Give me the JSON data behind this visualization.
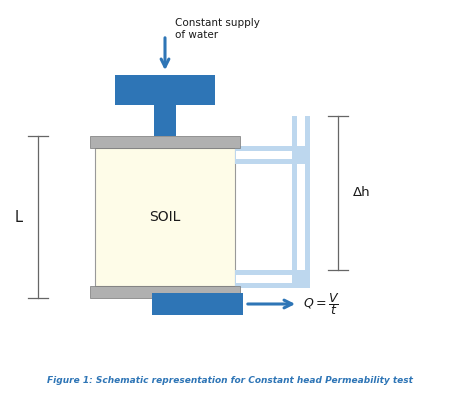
{
  "fig_width": 4.59,
  "fig_height": 3.96,
  "dpi": 100,
  "bg_color": "#ffffff",
  "blue_dark": "#2E75B6",
  "blue_light": "#BDD7EE",
  "gray_cap": "#b0b0b0",
  "gray_border": "#888888",
  "soil_fill": "#FEFCE8",
  "text_color_black": "#1a1a1a",
  "text_color_blue": "#2E75B6",
  "figure_caption": "Figure 1: Schematic representation for Constant head Permeability test",
  "soil_label": "SOIL",
  "L_label": "L",
  "dh_label": "Δh",
  "water_label_line1": "Constant supply",
  "water_label_line2": "of water"
}
